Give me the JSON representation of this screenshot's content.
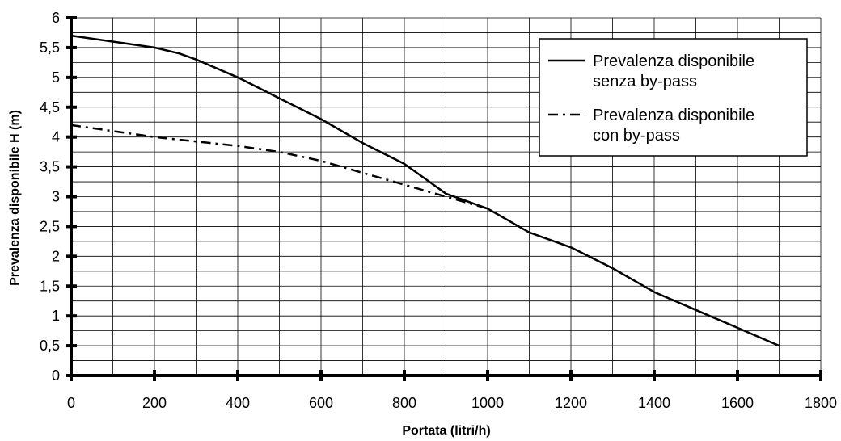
{
  "chart_data": {
    "type": "line",
    "title": "",
    "xlabel": "Portata (litri/h)",
    "ylabel": "Prevalenza disponibile H (m)",
    "xlim": [
      0,
      1800
    ],
    "ylim": [
      0,
      6
    ],
    "x_ticks": [
      "0",
      "200",
      "400",
      "600",
      "800",
      "1000",
      "1200",
      "1400",
      "1600",
      "1800"
    ],
    "x_tick_values": [
      0,
      200,
      400,
      600,
      800,
      1000,
      1200,
      1400,
      1600,
      1800
    ],
    "y_ticks": [
      "0",
      "0,5",
      "1",
      "1,5",
      "2",
      "2,5",
      "3",
      "3,5",
      "4",
      "4,5",
      "5",
      "5,5",
      "6"
    ],
    "y_tick_values": [
      0,
      0.5,
      1,
      1.5,
      2,
      2.5,
      3,
      3.5,
      4,
      4.5,
      5,
      5.5,
      6
    ],
    "x_minor_step": 100,
    "y_minor_step": 0.25,
    "grid": true,
    "legend_position": "top-right",
    "series": [
      {
        "name": "Prevalenza disponibile senza by-pass",
        "style": "solid",
        "color": "#000000",
        "x": [
          0,
          100,
          200,
          260,
          300,
          400,
          500,
          600,
          700,
          800,
          850,
          900,
          1000,
          1100,
          1200,
          1300,
          1400,
          1500,
          1600,
          1700
        ],
        "y": [
          5.7,
          5.6,
          5.5,
          5.4,
          5.3,
          5.0,
          4.65,
          4.3,
          3.9,
          3.55,
          3.3,
          3.05,
          2.8,
          2.4,
          2.15,
          1.8,
          1.4,
          1.1,
          0.8,
          0.5
        ]
      },
      {
        "name": "Prevalenza disponibile con by-pass",
        "style": "dash-dot",
        "color": "#000000",
        "x": [
          0,
          200,
          400,
          500,
          600,
          700,
          800,
          900,
          1000
        ],
        "y": [
          4.2,
          4.0,
          3.85,
          3.75,
          3.6,
          3.4,
          3.2,
          3.0,
          2.8
        ]
      }
    ],
    "legend": {
      "entries": [
        {
          "line1": "Prevalenza disponibile",
          "line2": "senza by-pass",
          "style": "solid"
        },
        {
          "line1": "Prevalenza disponibile",
          "line2": "con by-pass",
          "style": "dash-dot"
        }
      ]
    }
  }
}
